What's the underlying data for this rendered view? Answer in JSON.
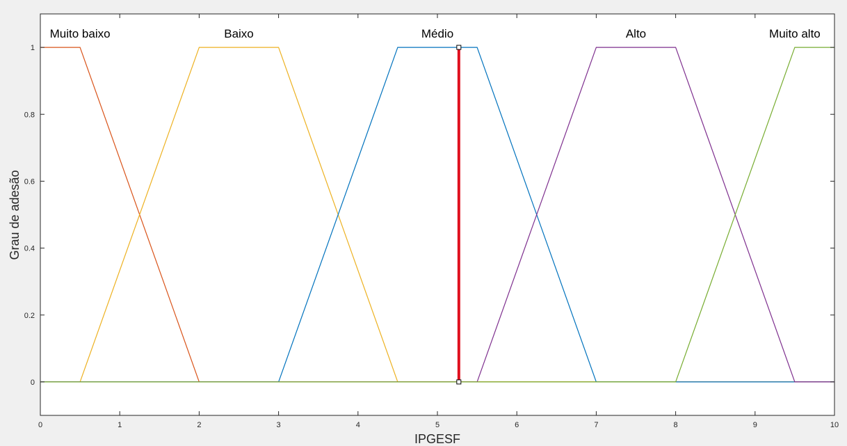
{
  "chart_data": {
    "type": "line",
    "title": "",
    "xlabel": "IPGESF",
    "ylabel": "Grau de adesão",
    "xlim": [
      0,
      10
    ],
    "ylim": [
      -0.1,
      1.1
    ],
    "xticks": [
      0,
      1,
      2,
      3,
      4,
      5,
      6,
      7,
      8,
      9,
      10
    ],
    "yticks": [
      0,
      0.2,
      0.4,
      0.6,
      0.8,
      1
    ],
    "ytick_labels": [
      "0",
      "0.2",
      "0.4",
      "0.6",
      "0.8",
      "1"
    ],
    "grid": false,
    "series": [
      {
        "name": "Muito baixo",
        "color": "#d95319",
        "x": [
          0,
          0.5,
          2,
          10
        ],
        "y": [
          1,
          1,
          0,
          0
        ]
      },
      {
        "name": "Baixo",
        "color": "#edb120",
        "x": [
          0,
          0.5,
          2,
          3,
          4.5,
          10
        ],
        "y": [
          0,
          0,
          1,
          1,
          0,
          0
        ]
      },
      {
        "name": "Médio",
        "color": "#0072bd",
        "x": [
          0,
          3,
          4.5,
          5.5,
          7,
          10
        ],
        "y": [
          0,
          0,
          1,
          1,
          0,
          0
        ]
      },
      {
        "name": "Alto",
        "color": "#7e2f8e",
        "x": [
          0,
          5.5,
          7,
          8,
          9.5,
          10
        ],
        "y": [
          0,
          0,
          1,
          1,
          0,
          0
        ]
      },
      {
        "name": "Muito alto",
        "color": "#77ac30",
        "x": [
          0,
          8,
          9.5,
          10
        ],
        "y": [
          0,
          0,
          1,
          1
        ]
      }
    ],
    "mf_labels": [
      {
        "text": "Muito baixo",
        "x": 0.5,
        "y": 1.04
      },
      {
        "text": "Baixo",
        "x": 2.5,
        "y": 1.04
      },
      {
        "text": "Médio",
        "x": 5.0,
        "y": 1.04
      },
      {
        "text": "Alto",
        "x": 7.5,
        "y": 1.04
      },
      {
        "text": "Muito alto",
        "x": 9.5,
        "y": 1.04
      }
    ],
    "indicator": {
      "x": 5.27,
      "y_range": [
        0,
        1
      ],
      "color": "#e0101e"
    }
  }
}
